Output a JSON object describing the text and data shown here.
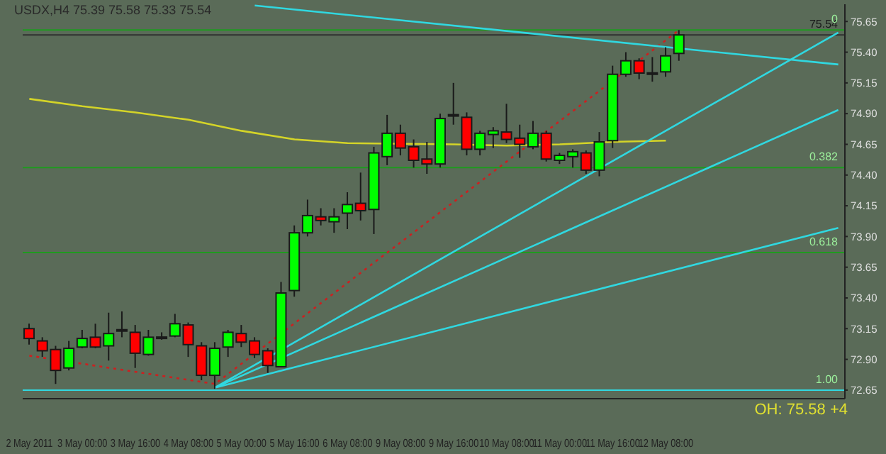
{
  "chart_data": {
    "type": "candlestick",
    "title": "USDX,H4  75.39 75.58 75.33 75.54",
    "categories": [
      "2 May 2011",
      null,
      null,
      null,
      "3 May 00:00",
      null,
      null,
      null,
      "3 May 16:00",
      null,
      null,
      null,
      "4 May 08:00",
      null,
      null,
      null,
      "5 May 00:00",
      null,
      null,
      null,
      "5 May 16:00",
      null,
      null,
      null,
      "6 May 08:00",
      null,
      null,
      null,
      "9 May 08:00",
      null,
      null,
      null,
      "9 May 16:00",
      null,
      null,
      null,
      "10 May 08:00",
      null,
      null,
      null,
      "11 May 00:00",
      null,
      null,
      null,
      "11 May 16:00",
      null,
      null,
      null,
      "12 May 08:00",
      null,
      null,
      null,
      null,
      null,
      null,
      null,
      null,
      null,
      null,
      null,
      null,
      null
    ],
    "ohlc": [
      [
        73.15,
        73.19,
        73.02,
        73.07
      ],
      [
        73.05,
        73.08,
        72.92,
        72.97
      ],
      [
        72.98,
        73.01,
        72.7,
        72.81
      ],
      [
        72.83,
        73.05,
        72.81,
        72.99
      ],
      [
        73.0,
        73.14,
        72.99,
        73.07
      ],
      [
        73.08,
        73.19,
        72.99,
        73.0
      ],
      [
        73.01,
        73.28,
        72.89,
        73.11
      ],
      [
        73.13,
        73.29,
        73.08,
        73.13
      ],
      [
        73.12,
        73.18,
        72.83,
        72.95
      ],
      [
        72.94,
        73.14,
        72.93,
        73.08
      ],
      [
        73.07,
        73.12,
        73.06,
        73.08
      ],
      [
        73.09,
        73.27,
        73.08,
        73.19
      ],
      [
        73.18,
        73.2,
        72.92,
        73.02
      ],
      [
        73.01,
        73.04,
        72.73,
        72.77
      ],
      [
        72.77,
        73.04,
        72.66,
        72.99
      ],
      [
        73.0,
        73.14,
        72.92,
        73.12
      ],
      [
        73.11,
        73.18,
        73.0,
        73.04
      ],
      [
        73.05,
        73.08,
        72.91,
        72.94
      ],
      [
        72.97,
        72.99,
        72.79,
        72.85
      ],
      [
        72.84,
        73.53,
        72.84,
        73.44
      ],
      [
        73.46,
        73.99,
        73.41,
        73.93
      ],
      [
        73.93,
        74.2,
        73.9,
        74.07
      ],
      [
        74.06,
        74.13,
        73.99,
        74.03
      ],
      [
        74.02,
        74.13,
        73.93,
        74.06
      ],
      [
        74.09,
        74.26,
        73.96,
        74.16
      ],
      [
        74.17,
        74.42,
        74.03,
        74.11
      ],
      [
        74.12,
        74.63,
        73.92,
        74.58
      ],
      [
        74.55,
        74.89,
        74.48,
        74.74
      ],
      [
        74.74,
        74.81,
        74.56,
        74.62
      ],
      [
        74.63,
        74.69,
        74.46,
        74.52
      ],
      [
        74.53,
        74.67,
        74.41,
        74.49
      ],
      [
        74.49,
        74.9,
        74.46,
        74.86
      ],
      [
        74.88,
        75.15,
        74.81,
        74.88
      ],
      [
        74.87,
        74.91,
        74.56,
        74.61
      ],
      [
        74.61,
        74.76,
        74.56,
        74.74
      ],
      [
        74.73,
        74.79,
        74.62,
        74.76
      ],
      [
        74.75,
        74.98,
        74.66,
        74.69
      ],
      [
        74.7,
        74.81,
        74.54,
        74.65
      ],
      [
        74.63,
        74.84,
        74.61,
        74.74
      ],
      [
        74.74,
        74.76,
        74.51,
        74.53
      ],
      [
        74.52,
        74.58,
        74.49,
        74.56
      ],
      [
        74.55,
        74.61,
        74.46,
        74.59
      ],
      [
        74.58,
        74.6,
        74.41,
        74.44
      ],
      [
        74.44,
        74.75,
        74.39,
        74.67
      ],
      [
        74.68,
        75.29,
        74.62,
        75.22
      ],
      [
        75.22,
        75.4,
        75.2,
        75.33
      ],
      [
        75.33,
        75.35,
        75.18,
        75.23
      ],
      [
        75.22,
        75.36,
        75.16,
        75.22
      ],
      [
        75.24,
        75.44,
        75.2,
        75.37
      ],
      [
        75.39,
        75.58,
        75.33,
        75.54
      ],
      null,
      null,
      null,
      null,
      null,
      null,
      null,
      null,
      null,
      null,
      null,
      null
    ],
    "colors": [
      "#ff0000",
      "#ff0000",
      "#ff0000",
      "#00ff00",
      "#00ff00",
      "#ff0000",
      "#00ff00",
      "#00ff00",
      "#ff0000",
      "#00ff00",
      "#00ff00",
      "#00ff00",
      "#ff0000",
      "#ff0000",
      "#00ff00",
      "#00ff00",
      "#ff0000",
      "#ff0000",
      "#ff0000",
      "#00ff00",
      "#00ff00",
      "#00ff00",
      "#ff0000",
      "#00ff00",
      "#00ff00",
      "#ff0000",
      "#00ff00",
      "#00ff00",
      "#ff0000",
      "#ff0000",
      "#ff0000",
      "#00ff00",
      "#00ff00",
      "#ff0000",
      "#00ff00",
      "#00ff00",
      "#ff0000",
      "#ff0000",
      "#00ff00",
      "#ff0000",
      "#00ff00",
      "#00ff00",
      "#ff0000",
      "#00ff00",
      "#00ff00",
      "#00ff00",
      "#ff0000",
      "#00ff00",
      "#00ff00",
      "#00ff00",
      null,
      null,
      null,
      null,
      null,
      null,
      null,
      null,
      null,
      null,
      null,
      null
    ],
    "series": [
      {
        "type": "line",
        "color": "#d4d428",
        "values": [
          75.02,
          null,
          null,
          null,
          74.96,
          null,
          null,
          null,
          74.91,
          null,
          null,
          null,
          74.85,
          null,
          null,
          null,
          74.76,
          null,
          null,
          null,
          74.69,
          null,
          null,
          null,
          74.66,
          null,
          null,
          null,
          null,
          null,
          null,
          null,
          74.65,
          null,
          null,
          null,
          74.64,
          null,
          null,
          null,
          74.65,
          null,
          null,
          null,
          74.67,
          null,
          null,
          null,
          74.68,
          null,
          null,
          null,
          null,
          null,
          null,
          null,
          null,
          null,
          null,
          null,
          null,
          null
        ]
      },
      {
        "type": "line",
        "color": "#cc2020",
        "line_style": "dotted",
        "values": [
          72.93,
          null,
          null,
          null,
          null,
          null,
          null,
          null,
          null,
          null,
          null,
          null,
          null,
          null,
          72.7,
          null,
          null,
          null,
          null,
          null,
          null,
          null,
          null,
          null,
          null,
          null,
          null,
          null,
          null,
          null,
          null,
          null,
          null,
          null,
          null,
          null,
          null,
          null,
          null,
          null,
          null,
          null,
          null,
          null,
          null,
          null,
          null,
          null,
          null,
          75.58,
          null,
          null,
          null,
          null,
          null,
          null,
          null,
          null,
          null,
          null,
          null,
          null
        ]
      },
      {
        "type": "line",
        "color": "#30d8e0",
        "values": [
          null,
          null,
          null,
          null,
          null,
          null,
          null,
          null,
          null,
          null,
          null,
          null,
          null,
          null,
          72.67,
          null,
          null,
          null,
          null,
          null,
          null,
          null,
          null,
          null,
          null,
          null,
          null,
          null,
          null,
          null,
          null,
          null,
          null,
          null,
          null,
          null,
          null,
          null,
          null,
          null,
          null,
          null,
          null,
          null,
          null,
          null,
          null,
          null,
          null,
          null,
          null,
          null,
          null,
          null,
          null,
          null,
          null,
          null,
          null,
          null,
          null,
          75.56
        ]
      },
      {
        "type": "line",
        "color": "#30d8e0",
        "values": [
          null,
          null,
          null,
          null,
          null,
          null,
          null,
          null,
          null,
          null,
          null,
          null,
          null,
          null,
          72.67,
          null,
          null,
          null,
          null,
          null,
          null,
          null,
          null,
          null,
          null,
          null,
          null,
          null,
          null,
          null,
          null,
          null,
          null,
          null,
          null,
          null,
          null,
          null,
          null,
          null,
          null,
          null,
          null,
          null,
          null,
          null,
          null,
          null,
          null,
          null,
          null,
          null,
          null,
          null,
          null,
          null,
          null,
          null,
          null,
          null,
          null,
          74.93
        ]
      },
      {
        "type": "line",
        "color": "#30d8e0",
        "values": [
          null,
          null,
          null,
          null,
          null,
          null,
          null,
          null,
          null,
          null,
          null,
          null,
          null,
          null,
          72.67,
          null,
          null,
          null,
          null,
          null,
          null,
          null,
          null,
          null,
          null,
          null,
          null,
          null,
          null,
          null,
          null,
          null,
          null,
          null,
          null,
          null,
          null,
          null,
          null,
          null,
          null,
          null,
          null,
          null,
          null,
          null,
          null,
          null,
          null,
          null,
          null,
          null,
          null,
          null,
          null,
          null,
          null,
          null,
          null,
          null,
          null,
          73.97
        ]
      },
      {
        "type": "line",
        "color": "#30d8e0",
        "values": [
          null,
          null,
          null,
          null,
          null,
          null,
          null,
          null,
          null,
          null,
          null,
          null,
          null,
          null,
          null,
          null,
          null,
          75.78,
          null,
          null,
          null,
          null,
          null,
          null,
          null,
          null,
          null,
          null,
          null,
          null,
          null,
          null,
          null,
          null,
          null,
          null,
          null,
          null,
          null,
          null,
          null,
          null,
          null,
          null,
          null,
          null,
          null,
          null,
          null,
          null,
          null,
          null,
          null,
          null,
          null,
          null,
          null,
          null,
          null,
          null,
          null,
          75.3
        ]
      }
    ],
    "ylim": [
      72.58,
      75.79
    ],
    "yticks": [
      72.65,
      {
        "value": 72.9,
        "label": "72.90"
      },
      73.15,
      {
        "value": 73.4,
        "label": "73.40"
      },
      73.65,
      {
        "value": 73.9,
        "label": "73.90"
      },
      74.15,
      {
        "value": 74.4,
        "label": "74.40"
      },
      74.65,
      {
        "value": 74.9,
        "label": "74.90"
      },
      75.15,
      {
        "value": 75.4,
        "label": "75.40"
      },
      75.65
    ],
    "ref_lines": [
      {
        "axis": "y",
        "value": 75.58,
        "color": "#1f9a1f"
      },
      {
        "axis": "y",
        "value": 75.54,
        "label": "75.54",
        "color": "#303030"
      },
      {
        "axis": "y",
        "value": 74.46,
        "color": "#1f9a1f"
      },
      {
        "axis": "y",
        "value": 73.77,
        "color": "#1f9a1f"
      },
      {
        "axis": "y",
        "value": 72.65,
        "color": "#30d8e0"
      }
    ],
    "annotations": [
      {
        "text": "0",
        "y": 75.58
      },
      {
        "text": "0.382",
        "y": 74.46
      },
      {
        "text": "0.618",
        "y": 73.77
      },
      {
        "text": "1.00",
        "y": 72.65
      },
      "OH: 75.58 +4"
    ],
    "marker": "none",
    "grid": false,
    "legend": false
  }
}
